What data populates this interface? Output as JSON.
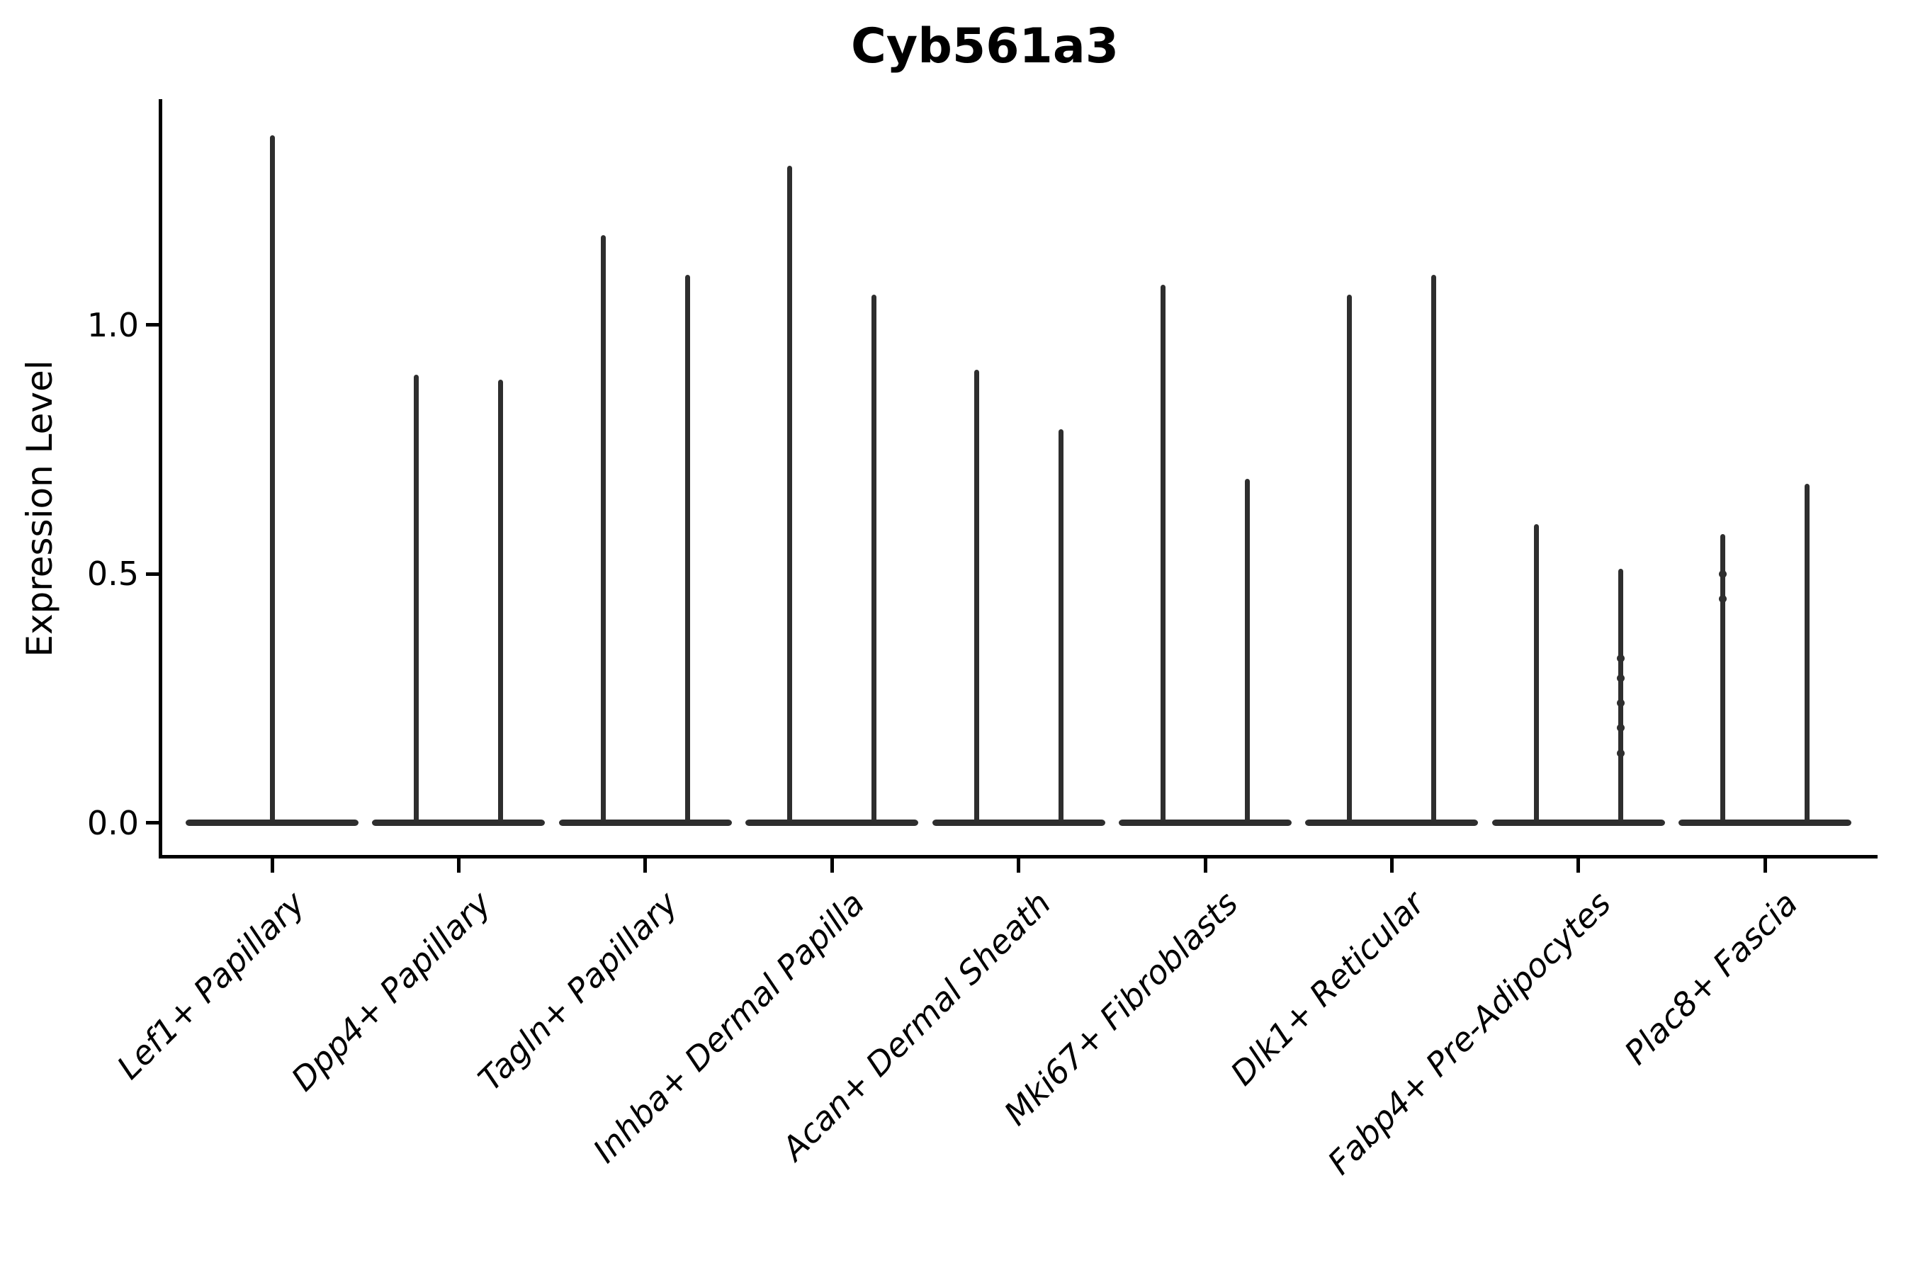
{
  "chart_data": {
    "type": "violin",
    "title": "Cyb561a3",
    "ylabel": "Expression Level",
    "xlabel": "",
    "ylim": [
      -0.07,
      1.45
    ],
    "grid": false,
    "legend": "none",
    "yticks": [
      {
        "label": "0.0",
        "value": 0.0
      },
      {
        "label": "0.5",
        "value": 0.5
      },
      {
        "label": "1.0",
        "value": 1.0
      }
    ],
    "description": "Violin plot of gene expression; each violin is massed at 0 (wide flat base) with a thin tail reaching its maximum expression value.",
    "violin_color": "#2e2e2e",
    "groups": [
      {
        "label": "Lef1+ Papillary",
        "violin_max": [
          1.38
        ]
      },
      {
        "label": "Dpp4+ Papillary",
        "violin_max": [
          0.9,
          0.89
        ]
      },
      {
        "label": "Tagln+ Papillary",
        "violin_max": [
          1.18,
          1.1
        ]
      },
      {
        "label": "Inhba+ Dermal Papilla",
        "violin_max": [
          1.32,
          1.06
        ]
      },
      {
        "label": "Acan+ Dermal Sheath",
        "violin_max": [
          0.91,
          0.79
        ]
      },
      {
        "label": "Mki67+ Fibroblasts",
        "violin_max": [
          1.08,
          0.69
        ]
      },
      {
        "label": "Dlk1+ Reticular",
        "violin_max": [
          1.06,
          1.1
        ]
      },
      {
        "label": "Fabp4+ Pre-Adipocytes",
        "violin_max": [
          0.6,
          0.51
        ]
      },
      {
        "label": "Plac8+ Fascia",
        "violin_max": [
          0.58,
          0.68
        ]
      }
    ],
    "jitter_points": [
      {
        "group_index": 7,
        "violin_index": 1,
        "values": [
          0.33,
          0.29,
          0.24,
          0.19,
          0.14
        ]
      },
      {
        "group_index": 8,
        "violin_index": 0,
        "values": [
          0.5,
          0.45
        ]
      }
    ]
  }
}
